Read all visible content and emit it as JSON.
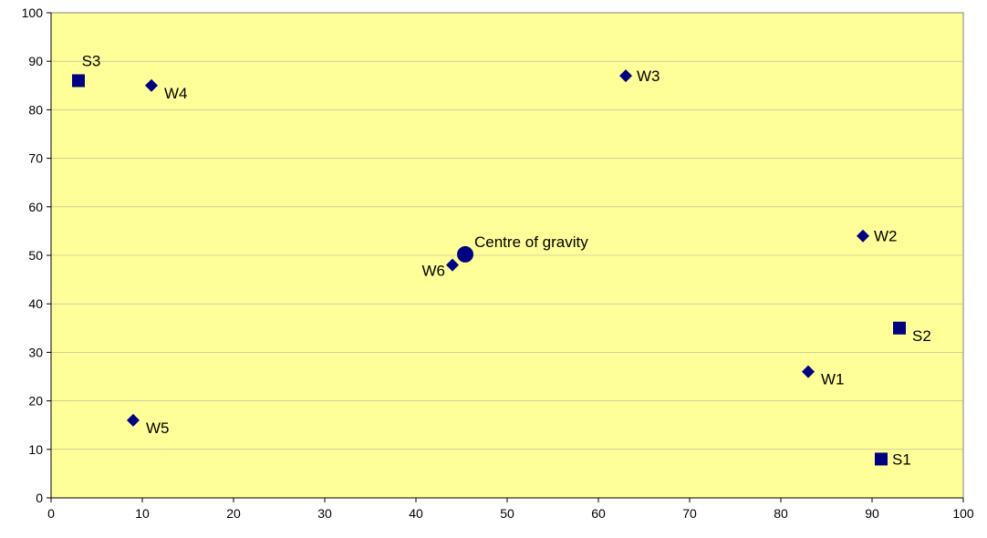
{
  "chart_data": {
    "type": "scatter",
    "title": "",
    "xlabel": "",
    "ylabel": "",
    "xlim": [
      0,
      100
    ],
    "ylim": [
      0,
      100
    ],
    "x_ticks": [
      0,
      10,
      20,
      30,
      40,
      50,
      60,
      70,
      80,
      90,
      100
    ],
    "y_ticks": [
      0,
      10,
      20,
      30,
      40,
      50,
      60,
      70,
      80,
      90,
      100
    ],
    "grid": "horizontal",
    "legend": "none",
    "plot_background": "#FFFF99",
    "marker_color": "#000080",
    "points": [
      {
        "label": "S1",
        "x": 91,
        "y": 8,
        "marker": "square",
        "label_pos": "right"
      },
      {
        "label": "S2",
        "x": 93,
        "y": 35,
        "marker": "square",
        "label_pos": "right-below"
      },
      {
        "label": "S3",
        "x": 3,
        "y": 86,
        "marker": "square",
        "label_pos": "above"
      },
      {
        "label": "W1",
        "x": 83,
        "y": 26,
        "marker": "diamond",
        "label_pos": "right-below"
      },
      {
        "label": "W2",
        "x": 89,
        "y": 54,
        "marker": "diamond",
        "label_pos": "right"
      },
      {
        "label": "W3",
        "x": 63,
        "y": 87,
        "marker": "diamond",
        "label_pos": "right"
      },
      {
        "label": "W4",
        "x": 11,
        "y": 85,
        "marker": "diamond",
        "label_pos": "right-below"
      },
      {
        "label": "W5",
        "x": 9,
        "y": 16,
        "marker": "diamond",
        "label_pos": "right-below"
      },
      {
        "label": "W6",
        "x": 44,
        "y": 48,
        "marker": "diamond",
        "label_pos": "left"
      },
      {
        "label": "Centre of gravity",
        "x": 45.4,
        "y": 50.2,
        "marker": "circle",
        "label_pos": "right-above"
      }
    ]
  }
}
